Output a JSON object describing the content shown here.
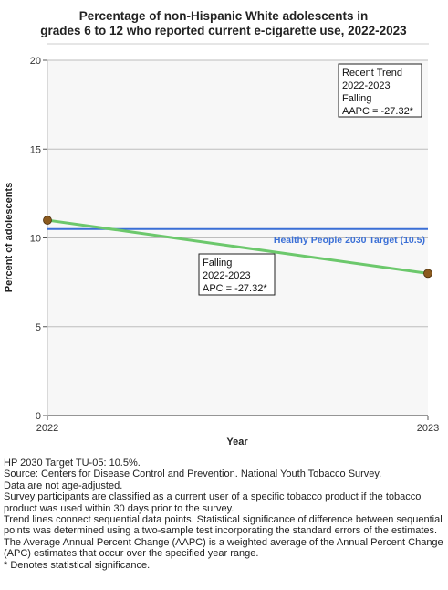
{
  "chart_data": {
    "type": "line",
    "title_lines": [
      "Percentage of non-Hispanic White adolescents in",
      "grades 6 to 12 who reported current e-cigarette use, 2022-2023"
    ],
    "xlabel": "Year",
    "ylabel": "Percent of adolescents",
    "x": [
      "2022",
      "2023"
    ],
    "ylim": [
      0,
      20
    ],
    "yticks": [
      0,
      5,
      10,
      15,
      20
    ],
    "grid": true,
    "series": [
      {
        "values": [
          11.0,
          8.0
        ],
        "line_color": "#6cc86c",
        "marker_color": "#8b5a1e"
      }
    ],
    "target": {
      "value": 10.5,
      "label": "Healthy People 2030 Target (10.5)",
      "color": "#3a6fd6"
    },
    "annotations": [
      {
        "id": "recent-trend",
        "lines": [
          "Recent Trend",
          "2022-2023",
          "Falling",
          "AAPC = -27.32*"
        ],
        "placement": "top-right"
      },
      {
        "id": "segment",
        "lines": [
          "Falling",
          "2022-2023",
          "APC = -27.32*"
        ],
        "placement": "mid-center"
      }
    ],
    "plot_background": "#f7f7f7"
  },
  "notes": [
    "HP 2030 Target TU-05: 10.5%.",
    "Source: Centers for Disease Control and Prevention. National Youth Tobacco Survey.",
    "Data are not age-adjusted.",
    "Survey participants are classified as a current user of a specific tobacco product if the tobacco product was used within 30 days prior to the survey.",
    "Trend lines connect sequential data points. Statistical significance of difference between sequential points was determined using a two-sample test incorporating the standard errors of the estimates.",
    "The Average Annual Percent Change (AAPC) is a weighted average of the Annual Percent Change (APC) estimates that occur over the specified year range.",
    "* Denotes statistical significance."
  ]
}
